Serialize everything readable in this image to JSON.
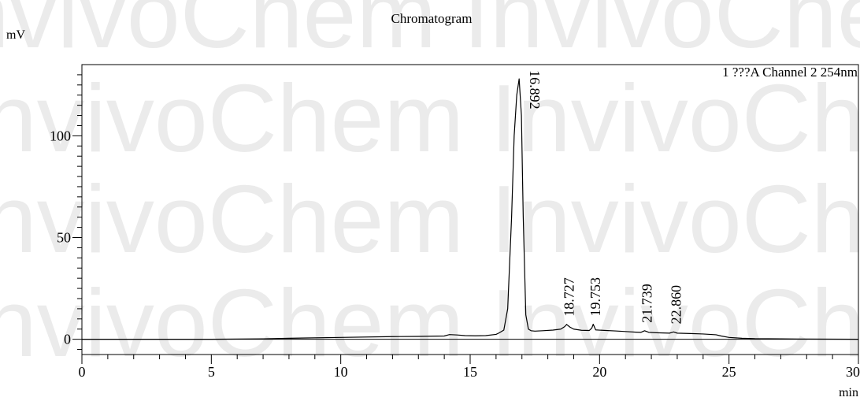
{
  "watermark": {
    "text": "InvivoChem",
    "color": "#ebebeb"
  },
  "chart_data": {
    "type": "line",
    "title": "Chromatogram",
    "ylabel": "mV",
    "xlabel": "min",
    "channel_label": "1 ???A Channel 2 254nm",
    "xlim": [
      0,
      30
    ],
    "ylim": [
      -7.5,
      135
    ],
    "x_ticks": [
      0,
      5,
      10,
      15,
      20,
      25,
      30
    ],
    "y_ticks": [
      0,
      50,
      100
    ],
    "grid": false,
    "line_color": "#000000",
    "baseline_y": 0,
    "trace": {
      "x": [
        0,
        5,
        7,
        8,
        10,
        12,
        13,
        14,
        14.2,
        14.5,
        14.8,
        15.2,
        15.6,
        16.0,
        16.1,
        16.3,
        16.45,
        16.6,
        16.7,
        16.8,
        16.892,
        16.98,
        17.05,
        17.15,
        17.25,
        17.35,
        17.5,
        17.8,
        18.2,
        18.5,
        18.65,
        18.727,
        18.85,
        19.0,
        19.3,
        19.6,
        19.7,
        19.753,
        19.85,
        20.1,
        20.6,
        21.0,
        21.4,
        21.6,
        21.739,
        21.9,
        22.2,
        22.7,
        22.86,
        23.0,
        23.5,
        24.0,
        24.5,
        24.7,
        25.0,
        25.5,
        26.0,
        27.0,
        28.0,
        30.0
      ],
      "y": [
        0,
        0,
        0.2,
        0.5,
        0.9,
        1.3,
        1.4,
        1.6,
        2.3,
        2.1,
        1.8,
        1.7,
        1.8,
        2.4,
        3.0,
        4.5,
        15.0,
        60.0,
        100.0,
        120.0,
        128.0,
        110.0,
        60.0,
        12.0,
        5.0,
        4.2,
        4.0,
        4.2,
        4.5,
        5.0,
        6.2,
        7.3,
        6.0,
        5.0,
        4.4,
        4.3,
        5.5,
        7.4,
        4.6,
        4.4,
        4.1,
        3.8,
        3.5,
        3.4,
        4.2,
        3.4,
        3.2,
        3.0,
        3.6,
        3.0,
        2.8,
        2.6,
        2.2,
        1.6,
        0.9,
        0.5,
        0.3,
        0.2,
        0.1,
        0
      ]
    },
    "peak_labels": [
      {
        "label": "16.892",
        "x": 16.892,
        "y": 128.0
      },
      {
        "label": "18.727",
        "x": 18.727,
        "y": 7.3
      },
      {
        "label": "19.753",
        "x": 19.753,
        "y": 7.4
      },
      {
        "label": "21.739",
        "x": 21.739,
        "y": 4.2
      },
      {
        "label": "22.860",
        "x": 22.86,
        "y": 3.6
      }
    ]
  }
}
